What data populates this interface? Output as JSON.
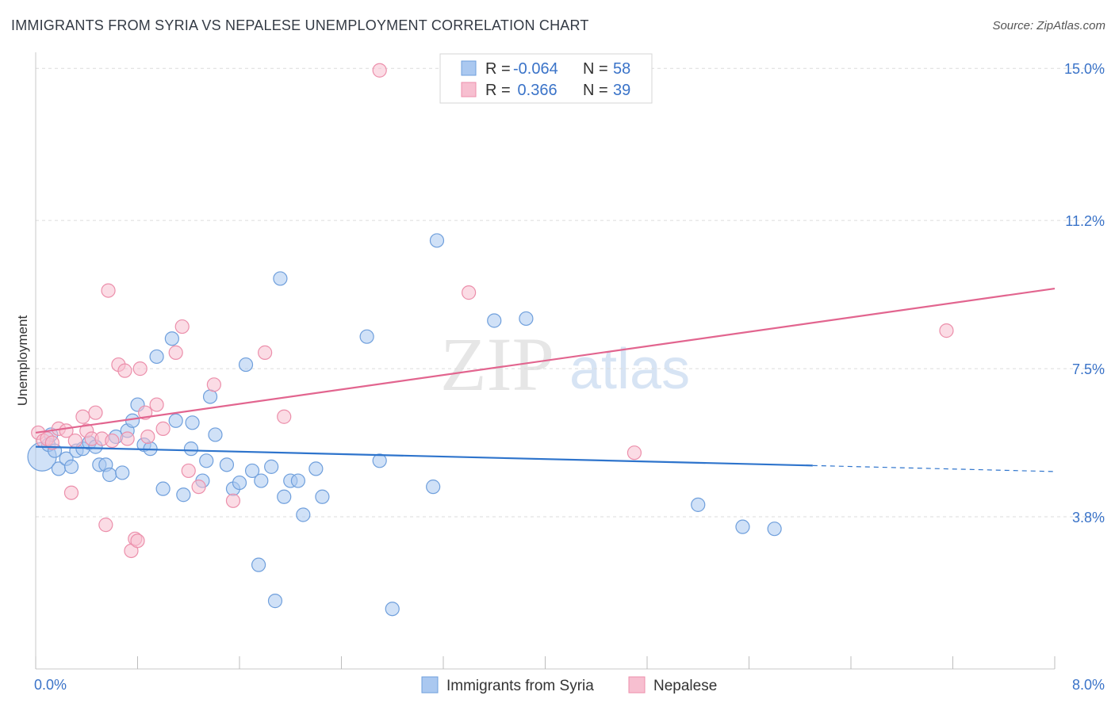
{
  "header": {
    "title": "IMMIGRANTS FROM SYRIA VS NEPALESE UNEMPLOYMENT CORRELATION CHART",
    "source": "Source: ZipAtlas.com"
  },
  "watermark": {
    "zip": "ZIP",
    "atlas": "atlas"
  },
  "colors": {
    "blue_fill": "#aac8f0",
    "blue_stroke": "#6f9fdc",
    "blue_line": "#2e74cc",
    "pink_fill": "#f7bfd0",
    "pink_stroke": "#ec8fab",
    "pink_line": "#e2658f",
    "tick_label": "#3a73c8"
  },
  "legend": {
    "rows": [
      {
        "r_label": "R = ",
        "r_value": "-0.064",
        "n_label": "N = ",
        "n_value": "58"
      },
      {
        "r_label": "R = ",
        "r_value": " 0.366",
        "n_label": "N = ",
        "n_value": "39"
      }
    ]
  },
  "chart_data": {
    "type": "scatter",
    "title": "IMMIGRANTS FROM SYRIA VS NEPALESE UNEMPLOYMENT CORRELATION CHART",
    "xlabel": "",
    "ylabel": "Unemployment",
    "xlim": [
      0,
      8
    ],
    "ylim": [
      0,
      15.4
    ],
    "x_tick_labels": [
      "0.0%",
      "8.0%"
    ],
    "y_ticks": [
      3.8,
      7.5,
      11.2,
      15.0
    ],
    "y_tick_labels": [
      "3.8%",
      "7.5%",
      "11.2%",
      "15.0%"
    ],
    "grid": true,
    "legend_position": "top-center",
    "series": [
      {
        "name": "Immigrants from Syria",
        "color": "#6f9fdc",
        "trend": {
          "x": [
            0,
            6.1,
            8.0
          ],
          "y": [
            5.55,
            5.08,
            4.93
          ],
          "solid_until": 6.1
        },
        "points": [
          [
            0.05,
            5.3,
            "big"
          ],
          [
            0.1,
            5.6
          ],
          [
            0.12,
            5.85
          ],
          [
            0.15,
            5.45
          ],
          [
            0.18,
            5.0
          ],
          [
            0.24,
            5.25
          ],
          [
            0.28,
            5.05
          ],
          [
            0.32,
            5.45
          ],
          [
            0.37,
            5.5
          ],
          [
            0.42,
            5.65
          ],
          [
            0.47,
            5.55
          ],
          [
            0.5,
            5.1
          ],
          [
            0.55,
            5.1
          ],
          [
            0.58,
            4.85
          ],
          [
            0.63,
            5.8
          ],
          [
            0.68,
            4.9
          ],
          [
            0.72,
            5.95
          ],
          [
            0.76,
            6.2
          ],
          [
            0.8,
            6.6
          ],
          [
            0.85,
            5.6
          ],
          [
            0.9,
            5.5
          ],
          [
            0.95,
            7.8
          ],
          [
            1.0,
            4.5
          ],
          [
            1.07,
            8.25
          ],
          [
            1.1,
            6.2
          ],
          [
            1.16,
            4.35
          ],
          [
            1.22,
            5.5
          ],
          [
            1.23,
            6.15
          ],
          [
            1.31,
            4.7
          ],
          [
            1.34,
            5.2
          ],
          [
            1.37,
            6.8
          ],
          [
            1.41,
            5.85
          ],
          [
            1.5,
            5.1
          ],
          [
            1.55,
            4.5
          ],
          [
            1.6,
            4.65
          ],
          [
            1.65,
            7.6
          ],
          [
            1.7,
            4.95
          ],
          [
            1.75,
            2.6
          ],
          [
            1.77,
            4.7
          ],
          [
            1.85,
            5.05
          ],
          [
            1.88,
            1.7
          ],
          [
            1.92,
            9.75
          ],
          [
            1.95,
            4.3
          ],
          [
            2.0,
            4.7
          ],
          [
            2.06,
            4.7
          ],
          [
            2.1,
            3.85
          ],
          [
            2.2,
            5.0
          ],
          [
            2.25,
            4.3
          ],
          [
            2.6,
            8.3
          ],
          [
            2.7,
            5.2
          ],
          [
            2.8,
            1.5
          ],
          [
            3.12,
            4.55
          ],
          [
            3.15,
            10.7
          ],
          [
            3.6,
            8.7
          ],
          [
            3.85,
            8.75
          ],
          [
            5.2,
            4.1
          ],
          [
            5.55,
            3.55
          ],
          [
            5.8,
            3.5
          ]
        ]
      },
      {
        "name": "Nepalese",
        "color": "#ec8fab",
        "trend": {
          "x": [
            0,
            8.0
          ],
          "y": [
            5.9,
            9.5
          ],
          "solid_until": 8.0
        },
        "points": [
          [
            0.02,
            5.9
          ],
          [
            0.06,
            5.7
          ],
          [
            0.09,
            5.75
          ],
          [
            0.13,
            5.65
          ],
          [
            0.18,
            6.0
          ],
          [
            0.24,
            5.95
          ],
          [
            0.28,
            4.4
          ],
          [
            0.31,
            5.7
          ],
          [
            0.37,
            6.3
          ],
          [
            0.4,
            5.95
          ],
          [
            0.44,
            5.75
          ],
          [
            0.47,
            6.4
          ],
          [
            0.52,
            5.75
          ],
          [
            0.55,
            3.6
          ],
          [
            0.57,
            9.45
          ],
          [
            0.6,
            5.7
          ],
          [
            0.65,
            7.6
          ],
          [
            0.7,
            7.45
          ],
          [
            0.72,
            5.75
          ],
          [
            0.75,
            2.95
          ],
          [
            0.78,
            3.25
          ],
          [
            0.8,
            3.2
          ],
          [
            0.82,
            7.5
          ],
          [
            0.86,
            6.4
          ],
          [
            0.88,
            5.8
          ],
          [
            0.95,
            6.6
          ],
          [
            1.0,
            6.0
          ],
          [
            1.1,
            7.9
          ],
          [
            1.15,
            8.55
          ],
          [
            1.2,
            4.95
          ],
          [
            1.28,
            4.55
          ],
          [
            1.4,
            7.1
          ],
          [
            1.55,
            4.2
          ],
          [
            1.8,
            7.9
          ],
          [
            1.95,
            6.3
          ],
          [
            2.7,
            14.95
          ],
          [
            3.4,
            9.4
          ],
          [
            4.7,
            5.4
          ],
          [
            7.15,
            8.45
          ]
        ]
      }
    ]
  },
  "bottom_legend": {
    "items": [
      {
        "label": "Immigrants from Syria"
      },
      {
        "label": "Nepalese"
      }
    ]
  }
}
